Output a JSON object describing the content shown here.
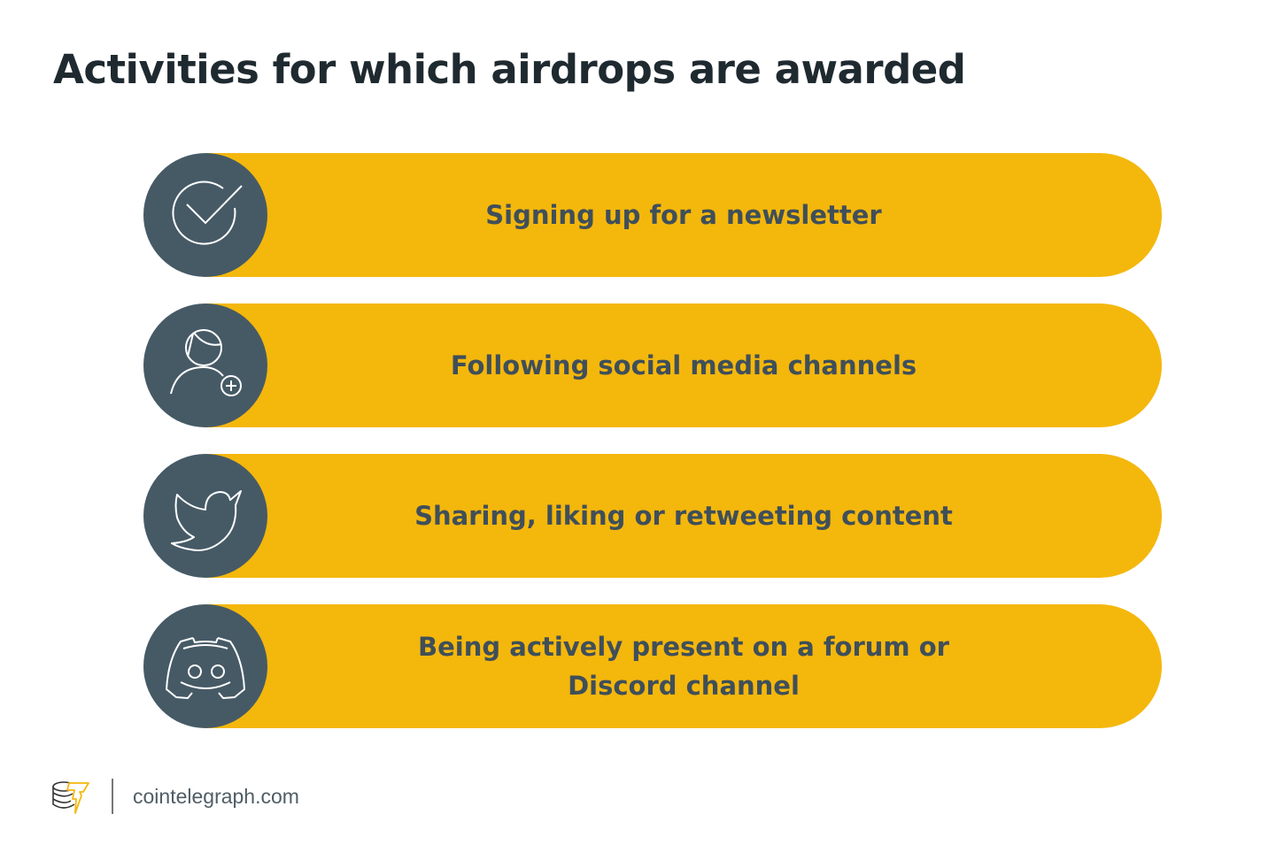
{
  "title": "Activities for which airdrops are awarded",
  "colors": {
    "pill": "#f4b70c",
    "circle": "#465a66",
    "text": "#3f4f5a"
  },
  "items": [
    {
      "label": "Signing up for a newsletter",
      "icon": "check-circle-icon"
    },
    {
      "label": "Following social media channels",
      "icon": "user-plus-icon"
    },
    {
      "label": "Sharing, liking or retweeting content",
      "icon": "twitter-bird-icon"
    },
    {
      "label": "Being actively present on a forum or Discord channel",
      "icon": "discord-icon"
    }
  ],
  "footer": {
    "site": "cointelegraph.com",
    "logo": "cointelegraph-logo"
  }
}
